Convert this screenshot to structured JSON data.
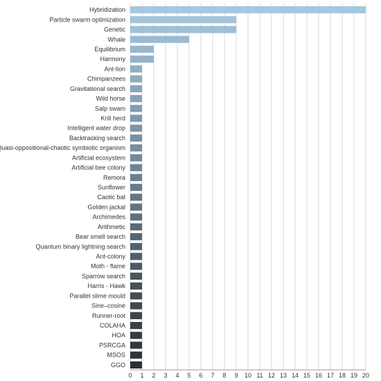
{
  "chart_data": {
    "type": "bar",
    "orientation": "horizontal",
    "title": "",
    "xlabel": "",
    "ylabel": "",
    "xlim": [
      0,
      20
    ],
    "grid": true,
    "legend": "none",
    "color_start": "#a6c8e0",
    "color_end": "#2b2f33",
    "categories": [
      "Hybridization",
      "Particle swarm optimization",
      "Genetic",
      "Whale",
      "Equilibrium",
      "Harmony",
      "Ant-lion",
      "Chimpanzees",
      "Gravitational search",
      "Wild horse",
      "Salp swam",
      "Krill herd",
      "Intelligent water drop",
      "Backtracking search",
      "Quasi-oppositional-chaotic symbiotic organism",
      "Artificial ecosystem",
      "Artificial bee colony",
      "Remora",
      "Sunflower",
      "Caotic bat",
      "Golden jackal",
      "Archimedes",
      "Arithmetic",
      "Bear smell search",
      "Quantum binary lightning search",
      "Ant-colony",
      "Moth - flame",
      "Sparrow search",
      "Harris - Hawk",
      "Parallel slime mould",
      "Sine–cosine",
      "Runner-root",
      "COLAHA",
      "HOA",
      "PSRCGA",
      "MSOS",
      "GGO"
    ],
    "values": [
      20,
      9,
      9,
      5,
      2,
      2,
      1,
      1,
      1,
      1,
      1,
      1,
      1,
      1,
      1,
      1,
      1,
      1,
      1,
      1,
      1,
      1,
      1,
      1,
      1,
      1,
      1,
      1,
      1,
      1,
      1,
      1,
      1,
      1,
      1,
      1,
      1
    ],
    "ticks": [
      "0",
      "1",
      "2",
      "3",
      "4",
      "5",
      "6",
      "7",
      "8",
      "9",
      "10",
      "11",
      "12",
      "13",
      "14",
      "15",
      "16",
      "17",
      "18",
      "19",
      "20"
    ]
  }
}
